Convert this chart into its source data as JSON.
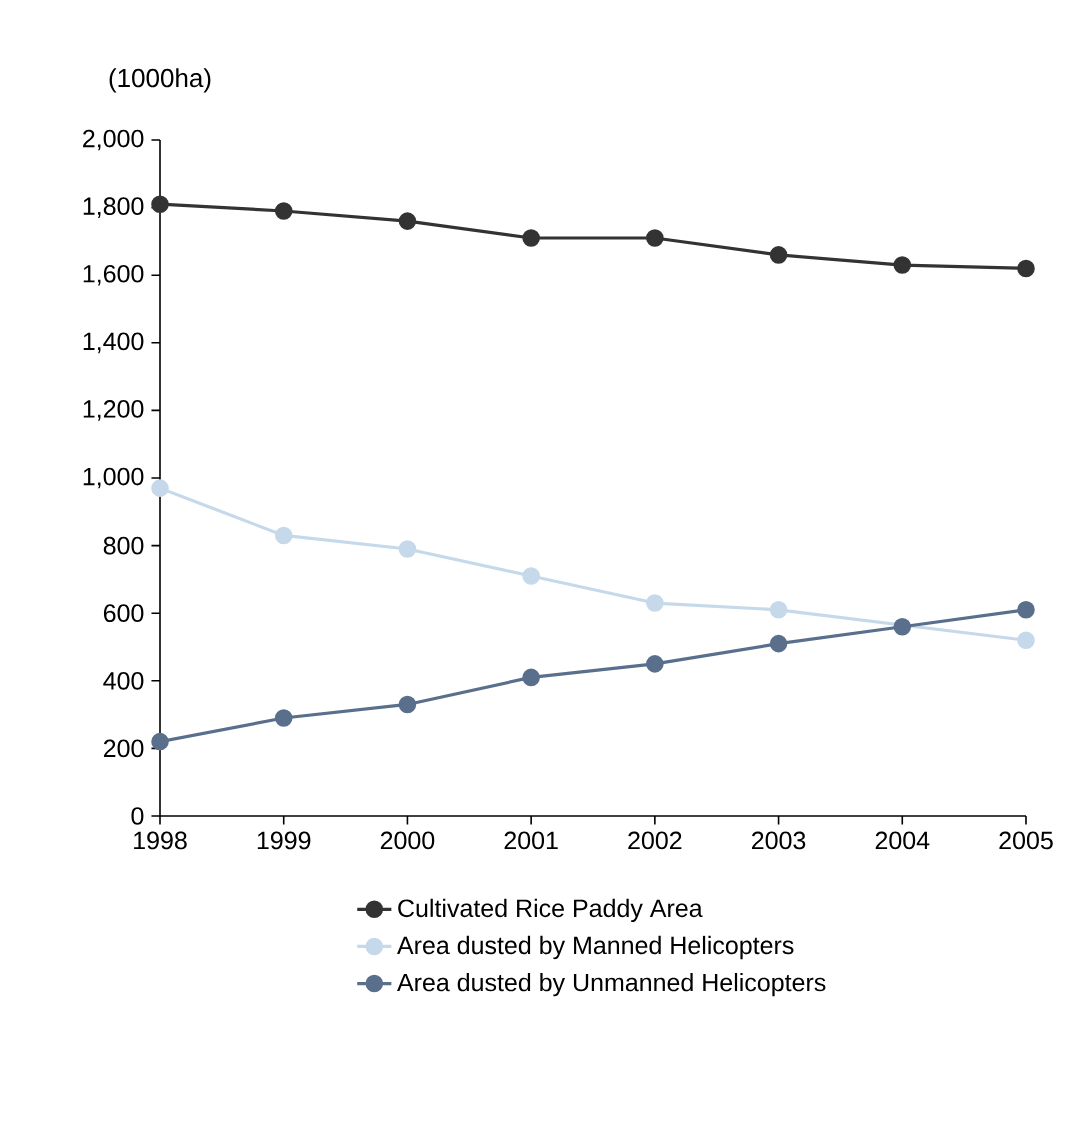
{
  "chart_data": {
    "type": "line",
    "ylabel": "(1000ha)",
    "categories": [
      "1998",
      "1999",
      "2000",
      "2001",
      "2002",
      "2003",
      "2004",
      "2005"
    ],
    "series": [
      {
        "name": "Cultivated Rice Paddy Area",
        "color": "#333333",
        "values": [
          1810,
          1790,
          1760,
          1710,
          1710,
          1660,
          1630,
          1620
        ]
      },
      {
        "name": "Area dusted by Manned Helicopters",
        "color": "#c5d9ea",
        "values": [
          970,
          830,
          790,
          710,
          630,
          610,
          null,
          520
        ]
      },
      {
        "name": "Area dusted by Unmanned Helicopters",
        "color": "#5a6f8c",
        "values": [
          220,
          290,
          330,
          410,
          450,
          510,
          560,
          610
        ]
      }
    ],
    "ylim": [
      0,
      2000
    ],
    "yticks": [
      0,
      200,
      400,
      600,
      800,
      {
        "value": 1000,
        "label": "1,000"
      },
      {
        "value": 1200,
        "label": "1,200"
      },
      {
        "value": 1400,
        "label": "1,400"
      },
      {
        "value": 1600,
        "label": "1,600"
      },
      {
        "value": 1800,
        "label": "1,800"
      },
      {
        "value": 2000,
        "label": "2,000"
      }
    ],
    "grid": false,
    "legend": "bottom",
    "marker": "circle",
    "line_style": "solid"
  }
}
